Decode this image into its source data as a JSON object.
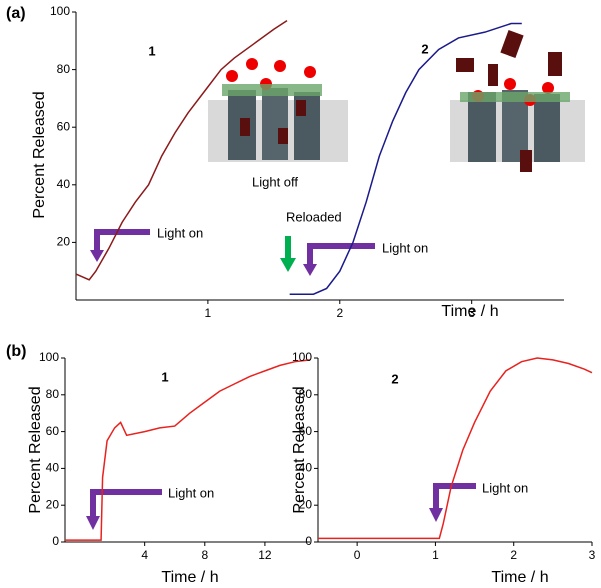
{
  "chart_data": [
    {
      "type": "line",
      "panel_label": "(a)",
      "xlabel": "Time / h",
      "ylabel": "Percent Released",
      "xlim": [
        0,
        3.7
      ],
      "ylim": [
        0,
        100
      ],
      "xticks": [
        1,
        2,
        3
      ],
      "yticks": [
        20,
        40,
        60,
        80,
        100
      ],
      "annotations": [
        "1",
        "2",
        "Light off",
        "Light on",
        "Reloaded",
        "Light on"
      ],
      "series": [
        {
          "color": "#8b1a1a",
          "x": [
            0,
            0.05,
            0.1,
            0.15,
            0.25,
            0.35,
            0.45,
            0.55,
            0.65,
            0.75,
            0.85,
            1.0,
            1.1,
            1.2,
            1.35,
            1.5,
            1.6
          ],
          "values": [
            9,
            8,
            7,
            10,
            18,
            27,
            34,
            40,
            50,
            58,
            65,
            74,
            80,
            84,
            89,
            94,
            97
          ]
        },
        {
          "color": "#1a1a8b",
          "x": [
            1.62,
            1.7,
            1.8,
            1.9,
            2.0,
            2.1,
            2.2,
            2.3,
            2.4,
            2.5,
            2.6,
            2.75,
            2.9,
            3.1,
            3.3,
            3.38
          ],
          "values": [
            2,
            2,
            2,
            4,
            10,
            20,
            34,
            50,
            62,
            72,
            80,
            87,
            91,
            93,
            96,
            96
          ]
        }
      ]
    },
    {
      "type": "line",
      "panel_label": "(b)",
      "xlabel": "Time / h",
      "ylabel": "Percent Released",
      "xlim": [
        -1.3,
        15
      ],
      "ylim": [
        0,
        100
      ],
      "xticks": [
        4,
        8,
        12
      ],
      "yticks": [
        0,
        20,
        40,
        60,
        80,
        100
      ],
      "annotations": [
        "1",
        "Light on"
      ],
      "series": [
        {
          "color": "#e8221e",
          "x": [
            -1.3,
            0,
            1.1,
            1.2,
            1.5,
            2,
            2.4,
            2.8,
            4,
            5,
            6,
            7,
            8,
            9,
            10,
            11,
            12,
            13,
            14,
            15
          ],
          "values": [
            1,
            1,
            1,
            35,
            55,
            62,
            65,
            58,
            60,
            62,
            63,
            70,
            76,
            82,
            86,
            90,
            93,
            96,
            98,
            99
          ]
        }
      ]
    },
    {
      "type": "line",
      "xlabel": "Time / h",
      "ylabel": "Percent Released",
      "xlim": [
        -0.5,
        3
      ],
      "ylim": [
        0,
        100
      ],
      "xticks": [
        0,
        1,
        2,
        3
      ],
      "yticks": [
        0,
        20,
        40,
        60,
        80,
        100
      ],
      "annotations": [
        "2",
        "Light on"
      ],
      "series": [
        {
          "color": "#e8221e",
          "x": [
            -0.5,
            0,
            0.5,
            1.05,
            1.1,
            1.2,
            1.35,
            1.5,
            1.7,
            1.9,
            2.1,
            2.3,
            2.5,
            2.7,
            2.9,
            3
          ],
          "values": [
            2,
            2,
            2,
            2,
            10,
            30,
            50,
            65,
            82,
            93,
            98,
            100,
            99,
            97,
            94,
            92
          ]
        }
      ]
    }
  ]
}
